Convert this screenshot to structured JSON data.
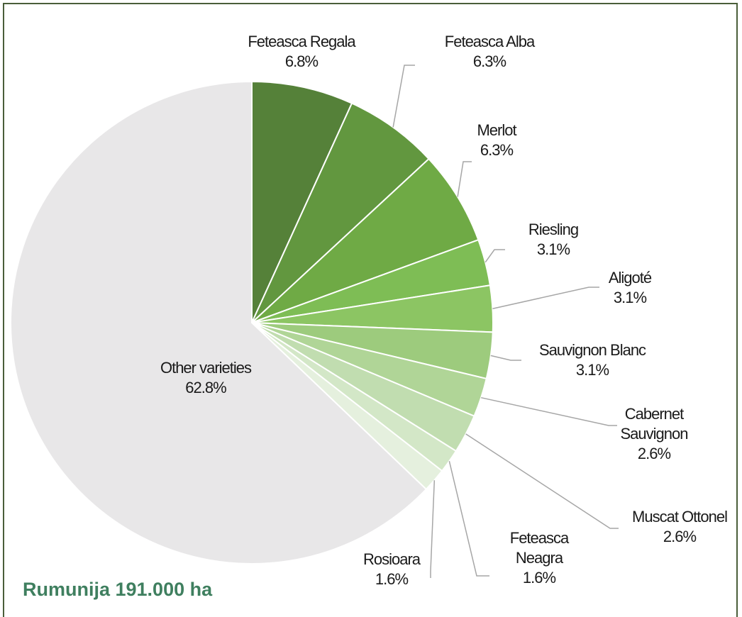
{
  "chart_data": {
    "type": "pie",
    "title": "Rumunija 191.000 ha",
    "categories": [
      "Feteasca Regala",
      "Feteasca Alba",
      "Merlot",
      "Riesling",
      "Aligoté",
      "Sauvignon Blanc",
      "Cabernet Sauvignon",
      "Muscat Ottonel",
      "Feteasca Neagra",
      "Rosioara",
      "Other varieties"
    ],
    "values": [
      6.8,
      6.3,
      6.3,
      3.1,
      3.1,
      3.1,
      2.6,
      2.6,
      1.6,
      1.6,
      62.8
    ],
    "value_labels": [
      "6.8%",
      "6.3%",
      "6.3%",
      "3.1%",
      "3.1%",
      "3.1%",
      "2.6%",
      "2.6%",
      "1.6%",
      "1.6%",
      "62.8%"
    ],
    "colors": [
      "#558139",
      "#62973f",
      "#6faa45",
      "#7ebd55",
      "#8cc563",
      "#9dcb7d",
      "#b0d597",
      "#c1ddb0",
      "#d3e7c7",
      "#e5f0de",
      "#e8e7e8"
    ]
  }
}
